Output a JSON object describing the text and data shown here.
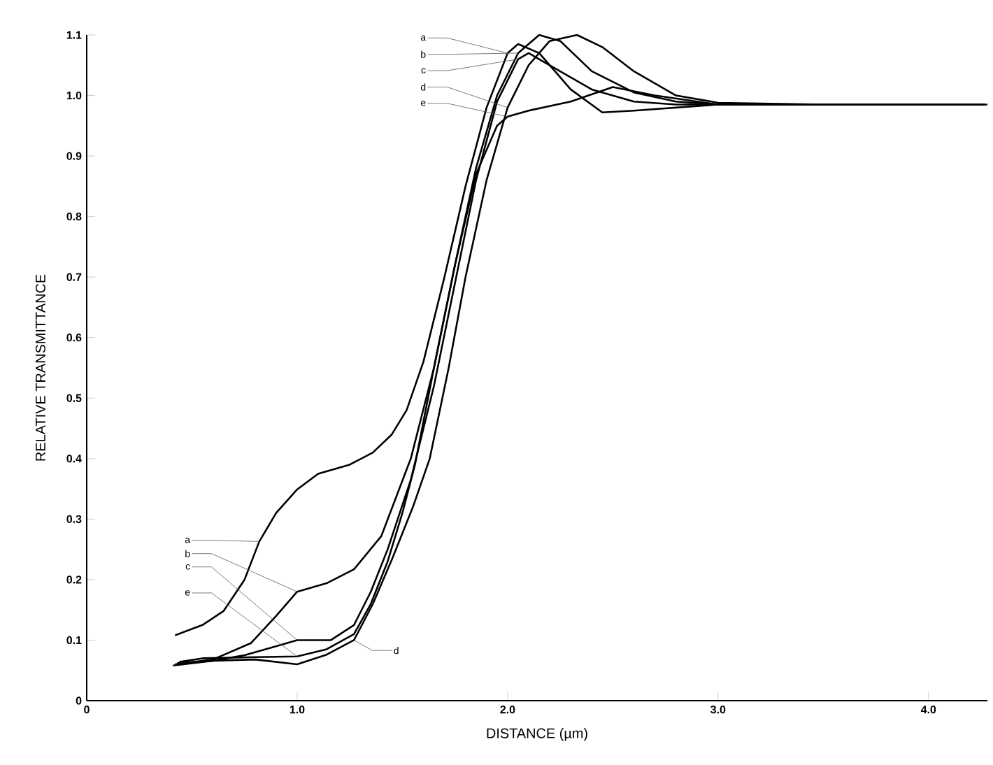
{
  "chart_data": {
    "type": "line",
    "xlabel": "DISTANCE (µm)",
    "ylabel": "RELATIVE TRANSMITTANCE",
    "xlim": [
      0,
      4.28
    ],
    "ylim": [
      0,
      1.1
    ],
    "xticks": [
      0,
      {
        "value": 1,
        "label": "1.0"
      },
      {
        "value": 2,
        "label": "2.0"
      },
      {
        "value": 3,
        "label": "3.0"
      },
      {
        "value": 4,
        "label": "4.0"
      }
    ],
    "yticks": [
      0,
      0.1,
      0.2,
      0.3,
      0.4,
      0.5,
      0.6,
      0.7,
      0.8,
      0.9,
      {
        "value": 1,
        "label": "1.0"
      },
      1.1
    ],
    "series": [
      {
        "color": "#000000",
        "x": [
          0.42,
          0.55,
          0.65,
          0.75,
          0.82,
          0.9,
          1.0,
          1.1,
          1.25,
          1.36,
          1.45,
          1.52,
          1.6,
          1.7,
          1.8,
          1.9,
          2.0,
          2.05,
          2.15,
          2.3,
          2.45,
          2.6,
          3.0,
          3.5,
          4.0,
          4.28
        ],
        "values": [
          0.108,
          0.125,
          0.148,
          0.2,
          0.263,
          0.31,
          0.349,
          0.375,
          0.39,
          0.41,
          0.44,
          0.48,
          0.56,
          0.7,
          0.85,
          0.98,
          1.07,
          1.085,
          1.07,
          1.01,
          0.972,
          0.975,
          0.985,
          0.985,
          0.985,
          0.985
        ]
      },
      {
        "color": "#000000",
        "x": [
          0.42,
          0.6,
          0.78,
          0.9,
          1.0,
          1.14,
          1.27,
          1.4,
          1.54,
          1.65,
          1.75,
          1.85,
          1.95,
          2.05,
          2.15,
          2.25,
          2.4,
          2.6,
          2.8,
          3.0,
          3.5,
          4.27
        ],
        "values": [
          0.06,
          0.068,
          0.095,
          0.14,
          0.18,
          0.194,
          0.217,
          0.272,
          0.4,
          0.55,
          0.72,
          0.88,
          1.0,
          1.07,
          1.1,
          1.09,
          1.04,
          1.005,
          0.99,
          0.985,
          0.985,
          0.985
        ]
      },
      {
        "color": "#000000",
        "x": [
          0.43,
          0.6,
          0.75,
          0.87,
          1.0,
          1.16,
          1.27,
          1.35,
          1.43,
          1.54,
          1.65,
          1.75,
          1.85,
          1.95,
          2.05,
          2.1,
          2.2,
          2.4,
          2.6,
          2.8,
          3.0,
          3.5,
          4.26
        ],
        "values": [
          0.062,
          0.066,
          0.075,
          0.087,
          0.1,
          0.1,
          0.125,
          0.18,
          0.25,
          0.365,
          0.52,
          0.69,
          0.86,
          0.99,
          1.06,
          1.07,
          1.05,
          1.01,
          0.99,
          0.985,
          0.985,
          0.985,
          0.985
        ]
      },
      {
        "color": "#000000",
        "x": [
          0.41,
          0.6,
          0.8,
          1.0,
          1.14,
          1.27,
          1.36,
          1.45,
          1.55,
          1.63,
          1.72,
          1.8,
          1.9,
          2.0,
          2.1,
          2.2,
          2.33,
          2.45,
          2.6,
          2.8,
          3.0,
          3.5,
          4.25
        ],
        "values": [
          0.058,
          0.066,
          0.068,
          0.06,
          0.076,
          0.1,
          0.16,
          0.233,
          0.32,
          0.4,
          0.55,
          0.7,
          0.86,
          0.98,
          1.05,
          1.09,
          1.1,
          1.08,
          1.04,
          1.0,
          0.988,
          0.985,
          0.985
        ]
      },
      {
        "color": "#000000",
        "x": [
          0.44,
          0.55,
          0.8,
          1.0,
          1.14,
          1.27,
          1.35,
          1.43,
          1.5,
          1.56,
          1.65,
          1.75,
          1.85,
          1.95,
          2.0,
          2.1,
          2.3,
          2.5,
          2.7,
          3.0,
          3.5,
          4.24
        ],
        "values": [
          0.064,
          0.07,
          0.072,
          0.073,
          0.085,
          0.11,
          0.16,
          0.23,
          0.31,
          0.39,
          0.55,
          0.72,
          0.87,
          0.95,
          0.965,
          0.975,
          0.99,
          1.014,
          1.0,
          0.985,
          0.985,
          0.985
        ]
      }
    ],
    "annotations": [
      {
        "text": "a",
        "x": 0.82,
        "y": 0.263
      },
      {
        "text": "b",
        "x": 1.0,
        "y": 0.18
      },
      {
        "text": "c",
        "x": 1.0,
        "y": 0.1
      },
      {
        "text": "d",
        "x": 1.27,
        "y": 0.1
      },
      {
        "text": "e",
        "x": 1.0,
        "y": 0.073
      },
      {
        "text": "a",
        "x": 2.0,
        "y": 1.07
      },
      {
        "text": "b",
        "x": 2.05,
        "y": 1.07
      },
      {
        "text": "c",
        "x": 2.05,
        "y": 1.06
      },
      {
        "text": "d",
        "x": 2.0,
        "y": 0.98
      },
      {
        "text": "e",
        "x": 2.0,
        "y": 0.965
      }
    ]
  }
}
